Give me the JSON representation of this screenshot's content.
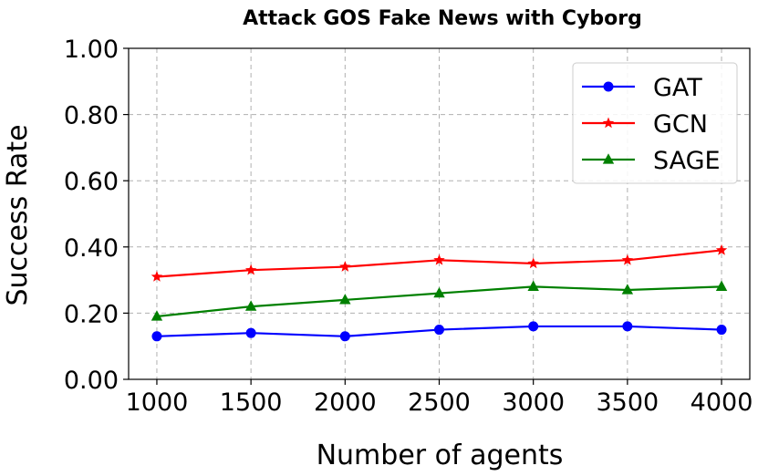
{
  "chart_data": {
    "type": "line",
    "title": "Attack GOS Fake News with Cyborg",
    "xlabel": "Number of agents",
    "ylabel": "Success Rate",
    "x": [
      1000,
      1500,
      2000,
      2500,
      3000,
      3500,
      4000
    ],
    "x_tick_labels": [
      "1000",
      "1500",
      "2000",
      "2500",
      "3000",
      "3500",
      "4000"
    ],
    "xlim": [
      850,
      4150
    ],
    "ylim": [
      0,
      1
    ],
    "y_ticks": [
      0,
      0.2,
      0.4,
      0.6,
      0.8,
      1.0
    ],
    "y_tick_labels": [
      "0.00",
      "0.20",
      "0.40",
      "0.60",
      "0.80",
      "1.00"
    ],
    "grid": true,
    "legend_position": "top-right",
    "series": [
      {
        "name": "GAT",
        "color": "#0000ff",
        "marker": "circle",
        "values": [
          0.13,
          0.14,
          0.13,
          0.15,
          0.16,
          0.16,
          0.15
        ]
      },
      {
        "name": "GCN",
        "color": "#ff0000",
        "marker": "star",
        "values": [
          0.31,
          0.33,
          0.34,
          0.36,
          0.35,
          0.36,
          0.39
        ]
      },
      {
        "name": "SAGE",
        "color": "#008000",
        "marker": "triangle",
        "values": [
          0.19,
          0.22,
          0.24,
          0.26,
          0.28,
          0.27,
          0.28
        ]
      }
    ]
  }
}
